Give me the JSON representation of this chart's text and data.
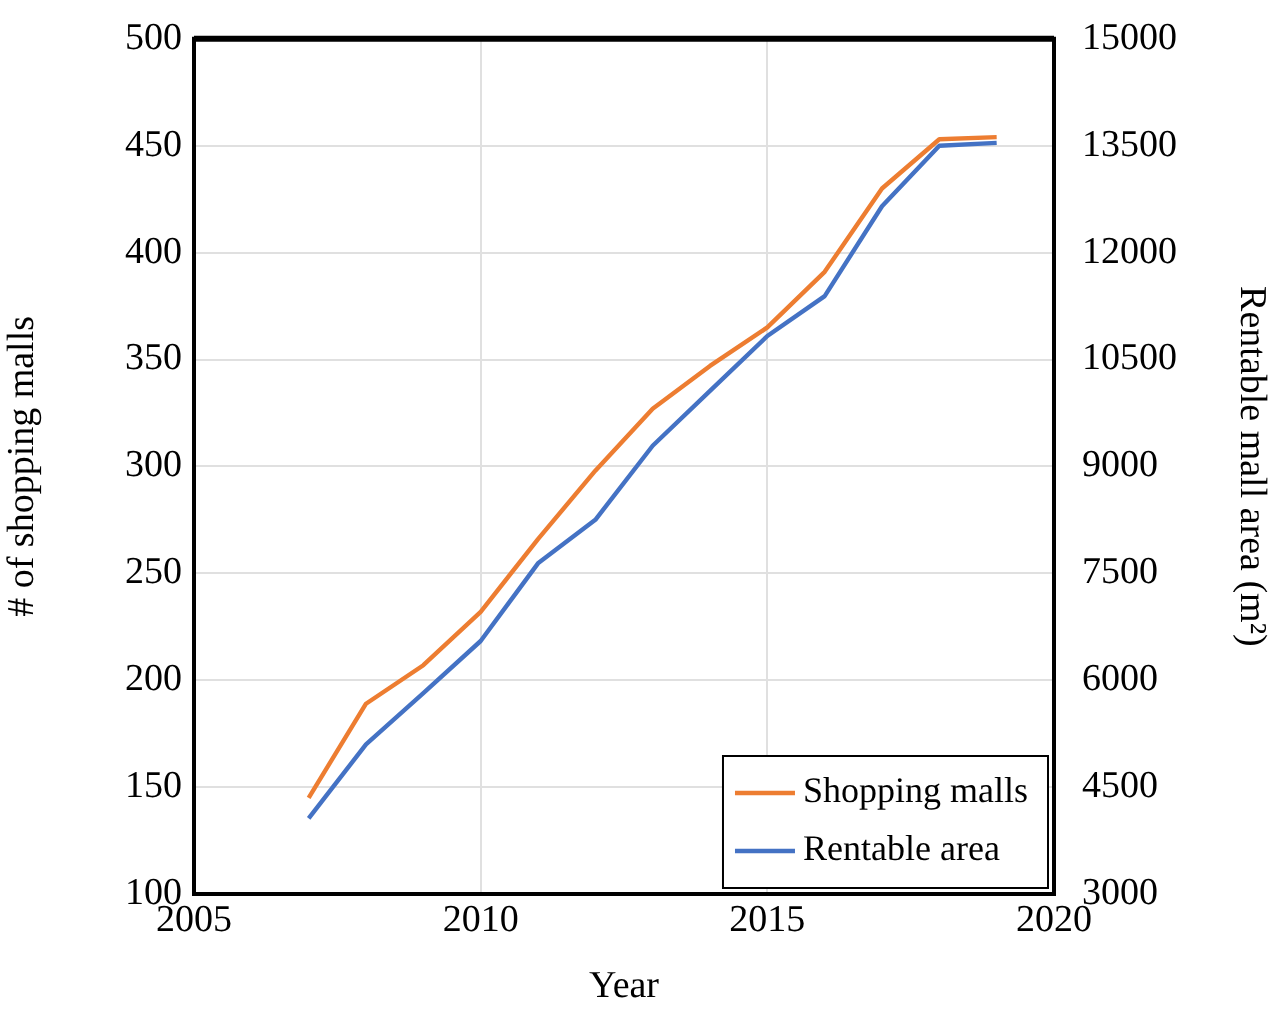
{
  "chart_data": {
    "type": "line",
    "xlabel": "Year",
    "ylabel": "# of shopping malls",
    "y2label": "Rentable mall area (m²)",
    "x": [
      2007,
      2008,
      2009,
      2010,
      2011,
      2012,
      2013,
      2014,
      2015,
      2016,
      2017,
      2018,
      2019
    ],
    "series": [
      {
        "name": "Shopping malls",
        "color": "#ed7d31",
        "values": [
          145,
          189,
          207,
          232,
          266,
          298,
          327,
          347,
          365,
          391,
          430,
          453,
          454
        ]
      },
      {
        "name": "Rentable area",
        "color": "#4472c4",
        "axis": "y2",
        "values": [
          4060,
          5100,
          5820,
          6550,
          7640,
          8250,
          9290,
          10060,
          10830,
          11390,
          12650,
          13500,
          13540
        ]
      }
    ],
    "xlim": [
      2005,
      2020
    ],
    "xticks": [
      2005,
      2010,
      2015,
      2020
    ],
    "ylim": [
      100,
      500
    ],
    "yticks": [
      100,
      150,
      200,
      250,
      300,
      350,
      400,
      450,
      500
    ],
    "y2lim": [
      3000,
      15000
    ],
    "y2ticks": [
      3000,
      4500,
      6000,
      7500,
      9000,
      10500,
      12000,
      13500,
      15000
    ],
    "grid": true,
    "legend": "bottom right",
    "marker": "none",
    "line_style": "solid"
  }
}
